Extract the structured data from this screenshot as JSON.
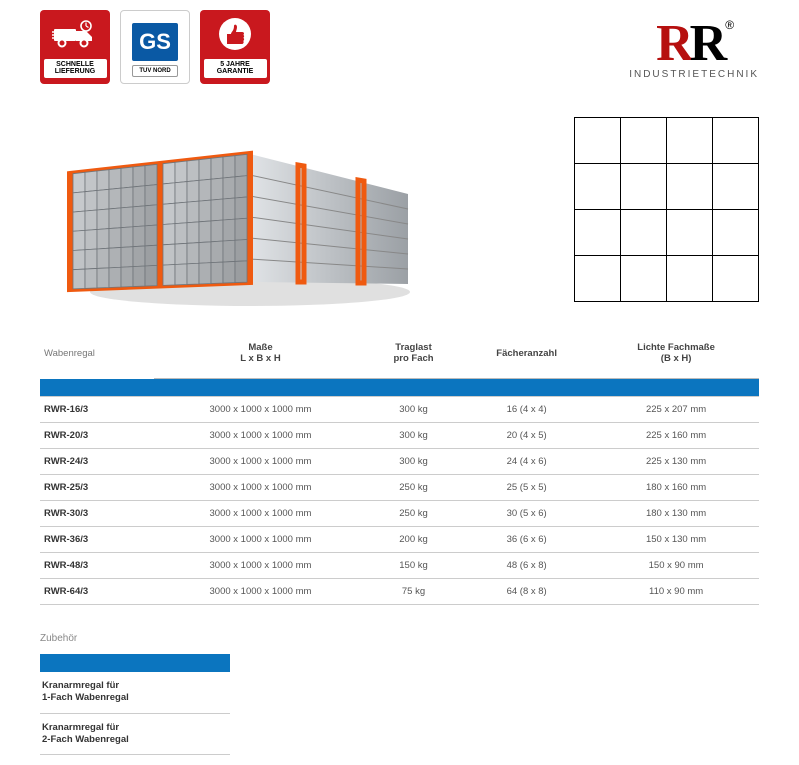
{
  "badges": {
    "fast_delivery_label": "SCHNELLE LIEFERUNG",
    "gs_main": "GS",
    "gs_sub": "TUV NORD",
    "warranty_label": "5 JAHRE GARANTIE"
  },
  "brand": {
    "r1": "R",
    "r2": "R",
    "reg": "®",
    "subtitle": "INDUSTRIETECHNIK"
  },
  "grid": {
    "rows": 4,
    "cols": 4
  },
  "table": {
    "title_corner": "Wabenregal",
    "columns": [
      "Maße\nL x B x H",
      "Traglast\npro Fach",
      "Fächeranzahl",
      "Lichte Fachmaße\n(B x H)"
    ],
    "rows": [
      {
        "model": "RWR-16/3",
        "dims": "3000 x 1000 x 1000 mm",
        "load": "300 kg",
        "count": "16 (4 x 4)",
        "inner": "225 x 207 mm"
      },
      {
        "model": "RWR-20/3",
        "dims": "3000 x 1000 x 1000 mm",
        "load": "300 kg",
        "count": "20 (4 x 5)",
        "inner": "225 x 160 mm"
      },
      {
        "model": "RWR-24/3",
        "dims": "3000 x 1000 x 1000 mm",
        "load": "300 kg",
        "count": "24 (4 x 6)",
        "inner": "225 x 130 mm"
      },
      {
        "model": "RWR-25/3",
        "dims": "3000 x 1000 x 1000 mm",
        "load": "250 kg",
        "count": "25 (5 x 5)",
        "inner": "180 x 160 mm"
      },
      {
        "model": "RWR-30/3",
        "dims": "3000 x 1000 x 1000 mm",
        "load": "250 kg",
        "count": "30 (5 x 6)",
        "inner": "180 x 130 mm"
      },
      {
        "model": "RWR-36/3",
        "dims": "3000 x 1000 x 1000 mm",
        "load": "200 kg",
        "count": "36 (6 x 6)",
        "inner": "150 x 130 mm"
      },
      {
        "model": "RWR-48/3",
        "dims": "3000 x 1000 x 1000 mm",
        "load": "150 kg",
        "count": "48 (6 x 8)",
        "inner": "150 x 90 mm"
      },
      {
        "model": "RWR-64/3",
        "dims": "3000 x 1000 x 1000 mm",
        "load": "75 kg",
        "count": "64 (8 x 8)",
        "inner": "110 x 90 mm"
      }
    ]
  },
  "zubehoer": {
    "title": "Zubehör",
    "items": [
      "Kranarmregal für\n1-Fach Wabenregal",
      "Kranarmregal für\n2-Fach Wabenregal"
    ]
  },
  "colors": {
    "badge_red": "#c9181e",
    "brand_red": "#b6100f",
    "table_blue": "#0b75bf",
    "rack_orange": "#ef5a10",
    "rack_grey1": "#d7dadd",
    "rack_grey2": "#a6abb0"
  }
}
